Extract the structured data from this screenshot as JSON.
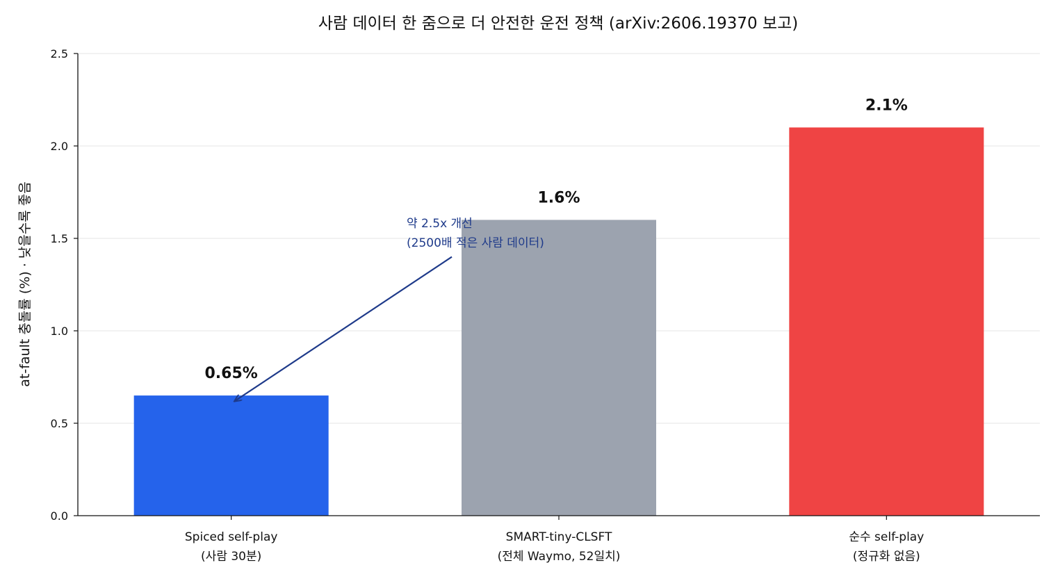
{
  "chart_data": {
    "type": "bar",
    "title": "사람 데이터 한 줌으로 더 안전한 운전 정책 (arXiv:2606.19370 보고)",
    "xlabel": "",
    "ylabel": "at-fault 충돌률 (%) · 낮을수록 좋음",
    "categories": [
      [
        "Spiced self-play",
        "(사람 30분)"
      ],
      [
        "SMART-tiny-CLSFT",
        "(전체 Waymo, 52일치)"
      ],
      [
        "순수 self-play",
        "(정규화 없음)"
      ]
    ],
    "values": [
      0.65,
      1.6,
      2.1
    ],
    "value_labels": [
      "0.65%",
      "1.6%",
      "2.1%"
    ],
    "colors": [
      "#2563eb",
      "#9ca3af",
      "#ef4444"
    ],
    "ylim": [
      0,
      2.5
    ],
    "yticks": [
      0.0,
      0.5,
      1.0,
      1.5,
      2.0,
      2.5
    ],
    "ytick_labels": [
      "0.0",
      "0.5",
      "1.0",
      "1.5",
      "2.0",
      "2.5"
    ],
    "grid": "horizontal",
    "legend": "none",
    "annotation": {
      "lines": [
        "약 2.5x 개선",
        "(2500배 적은 사람 데이터)"
      ],
      "color": "#1e3a8a",
      "arrow_from": {
        "x": 1,
        "y": 1.4
      },
      "arrow_to": {
        "x": 0,
        "y": 0.65
      }
    }
  }
}
